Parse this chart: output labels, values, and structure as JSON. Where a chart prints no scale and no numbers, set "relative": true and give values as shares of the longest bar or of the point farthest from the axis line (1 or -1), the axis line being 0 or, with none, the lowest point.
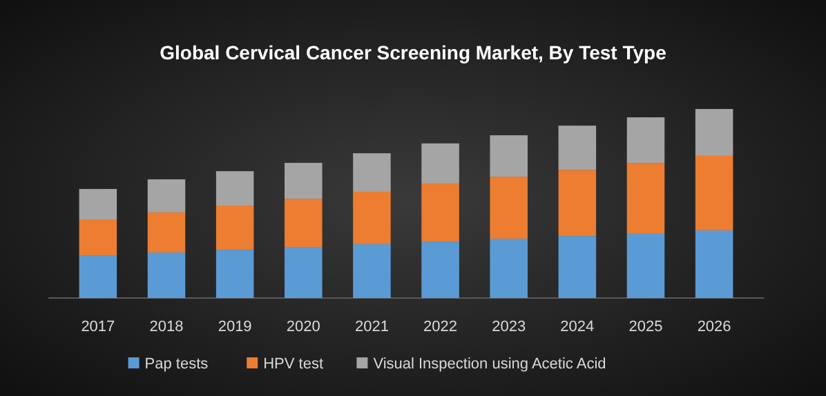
{
  "chart_data": {
    "type": "bar",
    "title": "Global Cervical Cancer Screening Market, By Test Type",
    "categories": [
      "2017",
      "2018",
      "2019",
      "2020",
      "2021",
      "2022",
      "2023",
      "2024",
      "2025",
      "2026"
    ],
    "stacked": true,
    "relative": true,
    "legend": "bottom",
    "series": [
      {
        "name": "Pap tests",
        "color": "#5b9bd5",
        "values": [
          0.226,
          0.241,
          0.255,
          0.27,
          0.285,
          0.299,
          0.314,
          0.328,
          0.343,
          0.358
        ]
      },
      {
        "name": "HPV test",
        "color": "#ed7d31",
        "values": [
          0.19,
          0.212,
          0.234,
          0.255,
          0.277,
          0.307,
          0.328,
          0.35,
          0.372,
          0.394
        ]
      },
      {
        "name": "Visual Inspection using Acetic Acid",
        "color": "#a5a5a5",
        "values": [
          0.161,
          0.175,
          0.182,
          0.19,
          0.204,
          0.212,
          0.219,
          0.234,
          0.241,
          0.248
        ]
      }
    ]
  }
}
